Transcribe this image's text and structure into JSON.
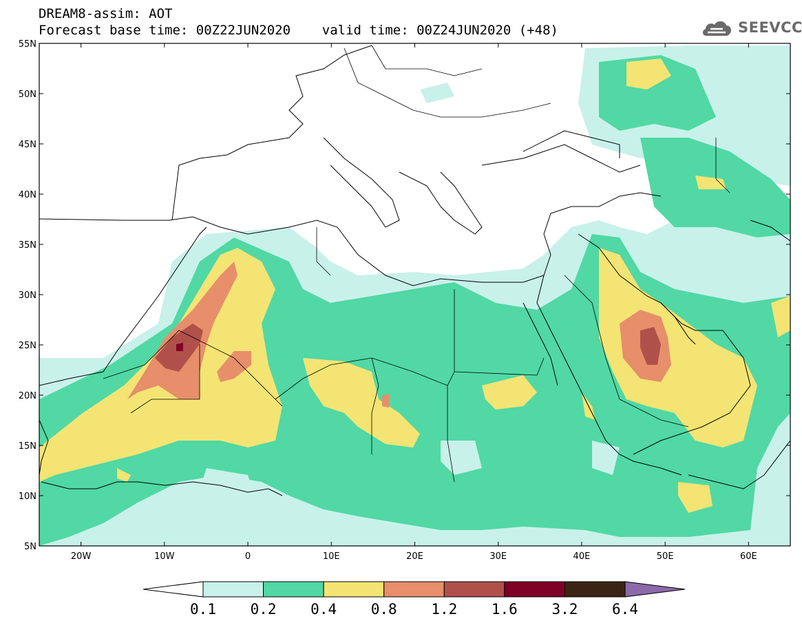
{
  "header": {
    "line1": "DREAM8-assim: AOT",
    "line2": "Forecast base time: 00Z22JUN2020    valid time: 00Z24JUN2020 (+48)"
  },
  "logo": {
    "text": "SEEVCCC",
    "icon": "cloud-icon"
  },
  "map": {
    "lon_range": [
      -25,
      65
    ],
    "lat_range": [
      5,
      55
    ],
    "lat_ticks": [
      "5N",
      "10N",
      "15N",
      "20N",
      "25N",
      "30N",
      "35N",
      "40N",
      "45N",
      "50N",
      "55N"
    ],
    "lon_ticks": [
      "20W",
      "10W",
      "0",
      "10E",
      "20E",
      "30E",
      "40E",
      "50E",
      "60E"
    ]
  },
  "colorbar": {
    "labels": [
      "0.1",
      "0.2",
      "0.4",
      "0.8",
      "1.2",
      "1.6",
      "3.2",
      "6.4"
    ],
    "colors": [
      "#c8f1ea",
      "#51d8a4",
      "#f4e474",
      "#e68f6a",
      "#b0504a",
      "#7e0025",
      "#3c2414",
      "#8a6aa8"
    ]
  }
}
